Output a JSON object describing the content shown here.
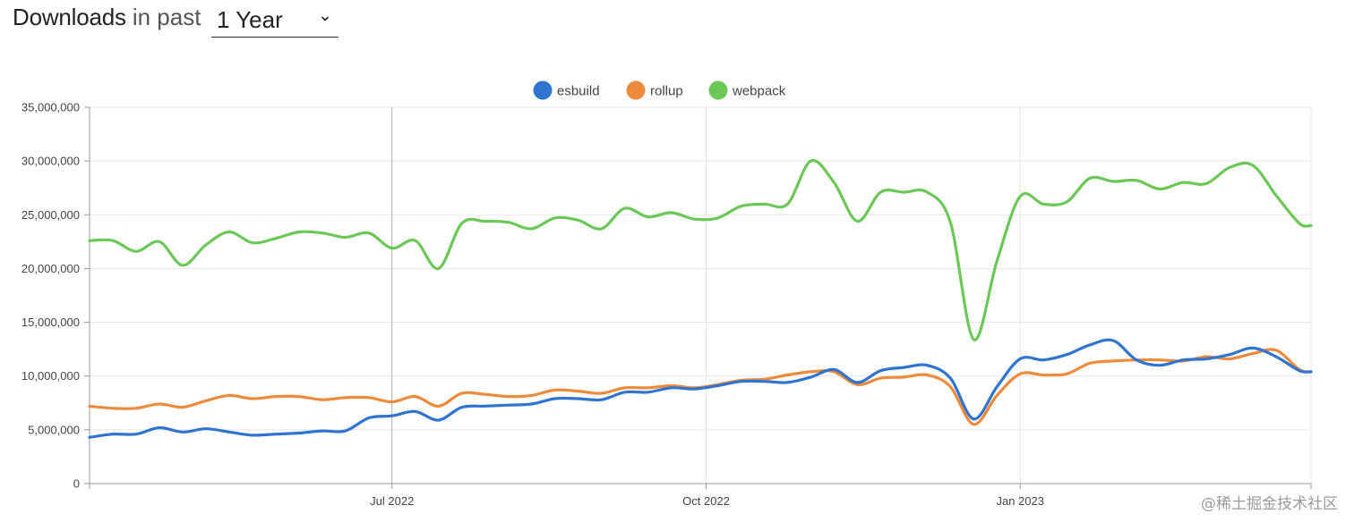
{
  "header": {
    "title": "Downloads",
    "subtitle": "in past",
    "period_selected": "1 Year"
  },
  "watermark": "@稀土掘金技术社区",
  "colors": {
    "esbuild": "#2f74d0",
    "rollup": "#ee8a3c",
    "webpack": "#6cc856",
    "grid": "#e6e6e6",
    "axis": "#999999"
  },
  "chart_data": {
    "type": "line",
    "title": "",
    "xlabel": "",
    "ylabel": "",
    "ylim": [
      0,
      35000000
    ],
    "y_ticks": [
      {
        "value": 0,
        "label": "0"
      },
      {
        "value": 5000000,
        "label": "5,000,000"
      },
      {
        "value": 10000000,
        "label": "10,000,000"
      },
      {
        "value": 15000000,
        "label": "15,000,000"
      },
      {
        "value": 20000000,
        "label": "20,000,000"
      },
      {
        "value": 25000000,
        "label": "25,000,000"
      },
      {
        "value": 30000000,
        "label": "30,000,000"
      },
      {
        "value": 35000000,
        "label": "35,000,000"
      }
    ],
    "x_ticks": [
      {
        "week": 0,
        "label": ""
      },
      {
        "week": 13,
        "label": "Jul 2022"
      },
      {
        "week": 26.5,
        "label": "Oct 2022"
      },
      {
        "week": 40,
        "label": "Jan 2023"
      },
      {
        "week": 52.5,
        "label": ""
      }
    ],
    "crosshair_week": 13,
    "legend": [
      "esbuild",
      "rollup",
      "webpack"
    ],
    "x": [
      0,
      1,
      2,
      3,
      4,
      5,
      6,
      7,
      8,
      9,
      10,
      11,
      12,
      13,
      14,
      15,
      16,
      17,
      18,
      19,
      20,
      21,
      22,
      23,
      24,
      25,
      26,
      27,
      28,
      29,
      30,
      31,
      32,
      33,
      34,
      35,
      36,
      37,
      38,
      39,
      40,
      41,
      42,
      43,
      44,
      45,
      46,
      47,
      48,
      49,
      50,
      51,
      52,
      52.5
    ],
    "series": [
      {
        "name": "esbuild",
        "values": [
          4300000,
          4600000,
          4600000,
          5200000,
          4800000,
          5100000,
          4800000,
          4500000,
          4600000,
          4700000,
          4900000,
          4900000,
          6100000,
          6300000,
          6700000,
          5900000,
          7100000,
          7200000,
          7300000,
          7400000,
          7900000,
          7900000,
          7800000,
          8500000,
          8500000,
          8900000,
          8800000,
          9100000,
          9500000,
          9500000,
          9400000,
          9900000,
          10600000,
          9400000,
          10500000,
          10800000,
          11000000,
          9800000,
          6000000,
          9000000,
          11600000,
          11500000,
          12000000,
          12900000,
          13300000,
          11500000,
          11000000,
          11500000,
          11600000,
          12000000,
          12600000,
          11800000,
          10500000,
          10400000
        ]
      },
      {
        "name": "rollup",
        "values": [
          7200000,
          7000000,
          7000000,
          7400000,
          7100000,
          7700000,
          8200000,
          7900000,
          8100000,
          8100000,
          7800000,
          8000000,
          8000000,
          7600000,
          8100000,
          7200000,
          8400000,
          8300000,
          8100000,
          8200000,
          8700000,
          8600000,
          8400000,
          8900000,
          8900000,
          9100000,
          8900000,
          9200000,
          9600000,
          9700000,
          10100000,
          10400000,
          10400000,
          9200000,
          9800000,
          9900000,
          10100000,
          9000000,
          5500000,
          8200000,
          10200000,
          10100000,
          10200000,
          11200000,
          11400000,
          11500000,
          11500000,
          11400000,
          11800000,
          11600000,
          12100000,
          12400000,
          10600000,
          10400000
        ]
      },
      {
        "name": "webpack",
        "values": [
          22600000,
          22600000,
          21600000,
          22500000,
          20300000,
          22200000,
          23400000,
          22400000,
          22800000,
          23400000,
          23300000,
          22900000,
          23300000,
          21900000,
          22600000,
          20000000,
          24200000,
          24400000,
          24300000,
          23700000,
          24700000,
          24500000,
          23700000,
          25600000,
          24800000,
          25200000,
          24600000,
          24700000,
          25800000,
          26000000,
          26000000,
          30000000,
          28000000,
          24400000,
          27100000,
          27100000,
          27100000,
          24300000,
          13400000,
          20700000,
          26700000,
          26000000,
          26200000,
          28400000,
          28100000,
          28200000,
          27400000,
          28000000,
          27900000,
          29400000,
          29600000,
          26800000,
          24200000,
          24000000
        ]
      }
    ]
  }
}
